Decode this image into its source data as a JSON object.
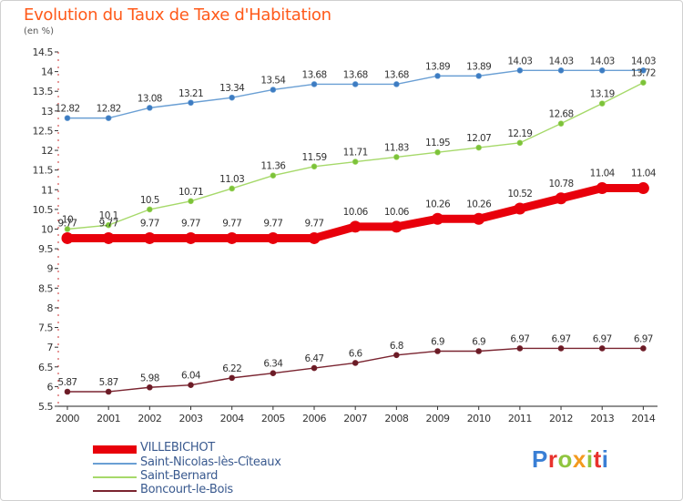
{
  "title": "Evolution du Taux de Taxe d'Habitation",
  "unit_label": "(en %)",
  "logo_text": "Proxiti",
  "logo_colors": [
    "#3a7fd5",
    "#e8322d",
    "#8fc53f",
    "#f39a1e",
    "#8fc53f",
    "#e8322d",
    "#3a7fd5"
  ],
  "chart_data": {
    "type": "line",
    "title": "Evolution du Taux de Taxe d'Habitation",
    "ylabel": "(en %)",
    "ylim": [
      5.5,
      14.5
    ],
    "yticks": [
      "5.5",
      "6",
      "6.5",
      "7",
      "7.5",
      "8",
      "8.5",
      "9",
      "9.5",
      "10",
      "10.5",
      "11",
      "11.5",
      "12",
      "12.5",
      "13",
      "13.5",
      "14",
      "14.5"
    ],
    "grid": false,
    "legend_position": "bottom",
    "x": [
      "2000",
      "2001",
      "2002",
      "2003",
      "2004",
      "2005",
      "2006",
      "2007",
      "2008",
      "2009",
      "2010",
      "2011",
      "2012",
      "2013",
      "2014"
    ],
    "series": [
      {
        "name": "VILLEBICHOT",
        "color": "#e8000b",
        "style": "thick",
        "values": [
          9.77,
          9.77,
          9.77,
          9.77,
          9.77,
          9.77,
          9.77,
          10.06,
          10.06,
          10.26,
          10.26,
          10.52,
          10.78,
          11.04,
          11.04
        ],
        "labels": [
          "9.77",
          "9.77",
          "9.77",
          "9.77",
          "9.77",
          "9.77",
          "9.77",
          "10.06",
          "10.06",
          "10.26",
          "10.26",
          "10.52",
          "10.78",
          "11.04",
          "11.04"
        ]
      },
      {
        "name": "Saint-Nicolas-lès-Cîteaux",
        "color": "#6a9fd4",
        "marker": "#3d7cc2",
        "values": [
          12.82,
          12.82,
          13.08,
          13.21,
          13.34,
          13.54,
          13.68,
          13.68,
          13.68,
          13.89,
          13.89,
          14.03,
          14.03,
          14.03,
          14.03
        ],
        "labels": [
          "12.82",
          "12.82",
          "13.08",
          "13.21",
          "13.34",
          "13.54",
          "13.68",
          "13.68",
          "13.68",
          "13.89",
          "13.89",
          "14.03",
          "14.03",
          "14.03",
          "14.03"
        ]
      },
      {
        "name": "Saint-Bernard",
        "color": "#a6d96a",
        "marker": "#7cc23a",
        "values": [
          10.0,
          10.1,
          10.5,
          10.71,
          11.03,
          11.36,
          11.59,
          11.71,
          11.83,
          11.95,
          12.07,
          12.19,
          12.68,
          13.19,
          13.72
        ],
        "labels": [
          "10",
          "10.1",
          "10.5",
          "10.71",
          "11.03",
          "11.36",
          "11.59",
          "11.71",
          "11.83",
          "11.95",
          "12.07",
          "12.19",
          "12.68",
          "13.19",
          "13.72"
        ]
      },
      {
        "name": "Boncourt-le-Bois",
        "color": "#7a2430",
        "marker": "#6a1c26",
        "values": [
          5.87,
          5.87,
          5.98,
          6.04,
          6.22,
          6.34,
          6.47,
          6.6,
          6.8,
          6.9,
          6.9,
          6.97,
          6.97,
          6.97,
          6.97
        ],
        "labels": [
          "5.87",
          "5.87",
          "5.98",
          "6.04",
          "6.22",
          "6.34",
          "6.47",
          "6.6",
          "6.8",
          "6.9",
          "6.9",
          "6.97",
          "6.97",
          "6.97",
          "6.97"
        ]
      }
    ]
  }
}
